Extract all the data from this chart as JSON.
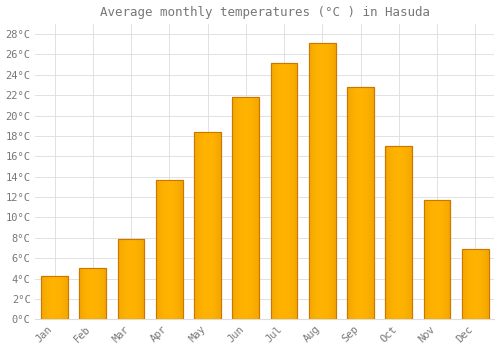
{
  "title": "Average monthly temperatures (°C ) in Hasuda",
  "months": [
    "Jan",
    "Feb",
    "Mar",
    "Apr",
    "May",
    "Jun",
    "Jul",
    "Aug",
    "Sep",
    "Oct",
    "Nov",
    "Dec"
  ],
  "values": [
    4.2,
    5.0,
    7.9,
    13.7,
    18.4,
    21.8,
    25.2,
    27.1,
    22.8,
    17.0,
    11.7,
    6.9
  ],
  "bar_color_main": "#FFAA00",
  "bar_color_light": "#FFD060",
  "bar_edge_color": "#CC7700",
  "background_color": "#FFFFFF",
  "plot_bg_color": "#FFFFFF",
  "grid_color": "#DDDDDD",
  "text_color": "#777777",
  "ylim": [
    0,
    29
  ],
  "yticks": [
    0,
    2,
    4,
    6,
    8,
    10,
    12,
    14,
    16,
    18,
    20,
    22,
    24,
    26,
    28
  ],
  "title_fontsize": 9,
  "tick_fontsize": 7.5,
  "bar_width": 0.7
}
